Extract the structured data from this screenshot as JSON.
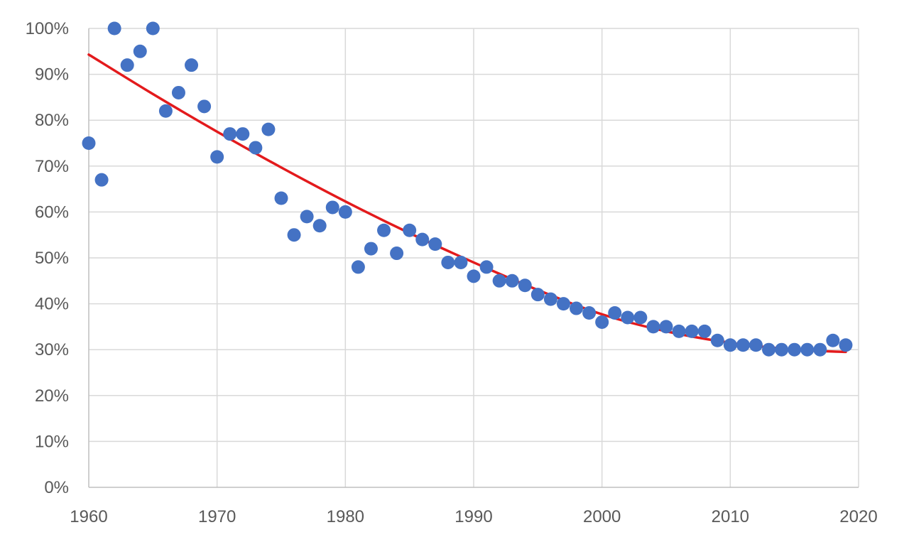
{
  "chart_data": {
    "type": "scatter",
    "xlim": [
      1960,
      2020
    ],
    "ylim": [
      0,
      100
    ],
    "x_ticks": [
      1960,
      1970,
      1980,
      1990,
      2000,
      2010,
      2020
    ],
    "y_ticks": [
      0,
      10,
      20,
      30,
      40,
      50,
      60,
      70,
      80,
      90,
      100
    ],
    "y_tick_format": "percent",
    "grid": true,
    "legend": "none",
    "series": [
      {
        "kind": "points",
        "color": "#4472c4",
        "points": [
          [
            1960,
            75
          ],
          [
            1961,
            67
          ],
          [
            1962,
            100
          ],
          [
            1963,
            92
          ],
          [
            1964,
            95
          ],
          [
            1965,
            100
          ],
          [
            1966,
            82
          ],
          [
            1967,
            86
          ],
          [
            1968,
            92
          ],
          [
            1969,
            83
          ],
          [
            1970,
            72
          ],
          [
            1971,
            77
          ],
          [
            1972,
            77
          ],
          [
            1973,
            74
          ],
          [
            1974,
            78
          ],
          [
            1975,
            63
          ],
          [
            1976,
            55
          ],
          [
            1977,
            59
          ],
          [
            1978,
            57
          ],
          [
            1979,
            61
          ],
          [
            1980,
            60
          ],
          [
            1981,
            48
          ],
          [
            1982,
            52
          ],
          [
            1983,
            56
          ],
          [
            1984,
            51
          ],
          [
            1985,
            56
          ],
          [
            1986,
            54
          ],
          [
            1987,
            53
          ],
          [
            1988,
            49
          ],
          [
            1989,
            49
          ],
          [
            1990,
            46
          ],
          [
            1991,
            48
          ],
          [
            1992,
            45
          ],
          [
            1993,
            45
          ],
          [
            1994,
            44
          ],
          [
            1995,
            42
          ],
          [
            1996,
            41
          ],
          [
            1997,
            40
          ],
          [
            1998,
            39
          ],
          [
            1999,
            38
          ],
          [
            2000,
            36
          ],
          [
            2001,
            38
          ],
          [
            2002,
            37
          ],
          [
            2003,
            37
          ],
          [
            2004,
            35
          ],
          [
            2005,
            35
          ],
          [
            2006,
            34
          ],
          [
            2007,
            34
          ],
          [
            2008,
            34
          ],
          [
            2009,
            32
          ],
          [
            2010,
            31
          ],
          [
            2011,
            31
          ],
          [
            2012,
            31
          ],
          [
            2013,
            30
          ],
          [
            2014,
            30
          ],
          [
            2015,
            30
          ],
          [
            2016,
            30
          ],
          [
            2017,
            30
          ],
          [
            2018,
            32
          ],
          [
            2019,
            31
          ]
        ]
      },
      {
        "kind": "trendline",
        "color": "#e31a1c",
        "points": [
          [
            1960,
            94.3
          ],
          [
            1965,
            85.7
          ],
          [
            1970,
            77.5
          ],
          [
            1975,
            69.7
          ],
          [
            1980,
            62.3
          ],
          [
            1985,
            55.4
          ],
          [
            1990,
            49.0
          ],
          [
            1995,
            43.0
          ],
          [
            2000,
            37.7
          ],
          [
            2005,
            34.0
          ],
          [
            2010,
            31.5
          ],
          [
            2015,
            30.0
          ],
          [
            2019,
            29.5
          ]
        ]
      }
    ]
  }
}
